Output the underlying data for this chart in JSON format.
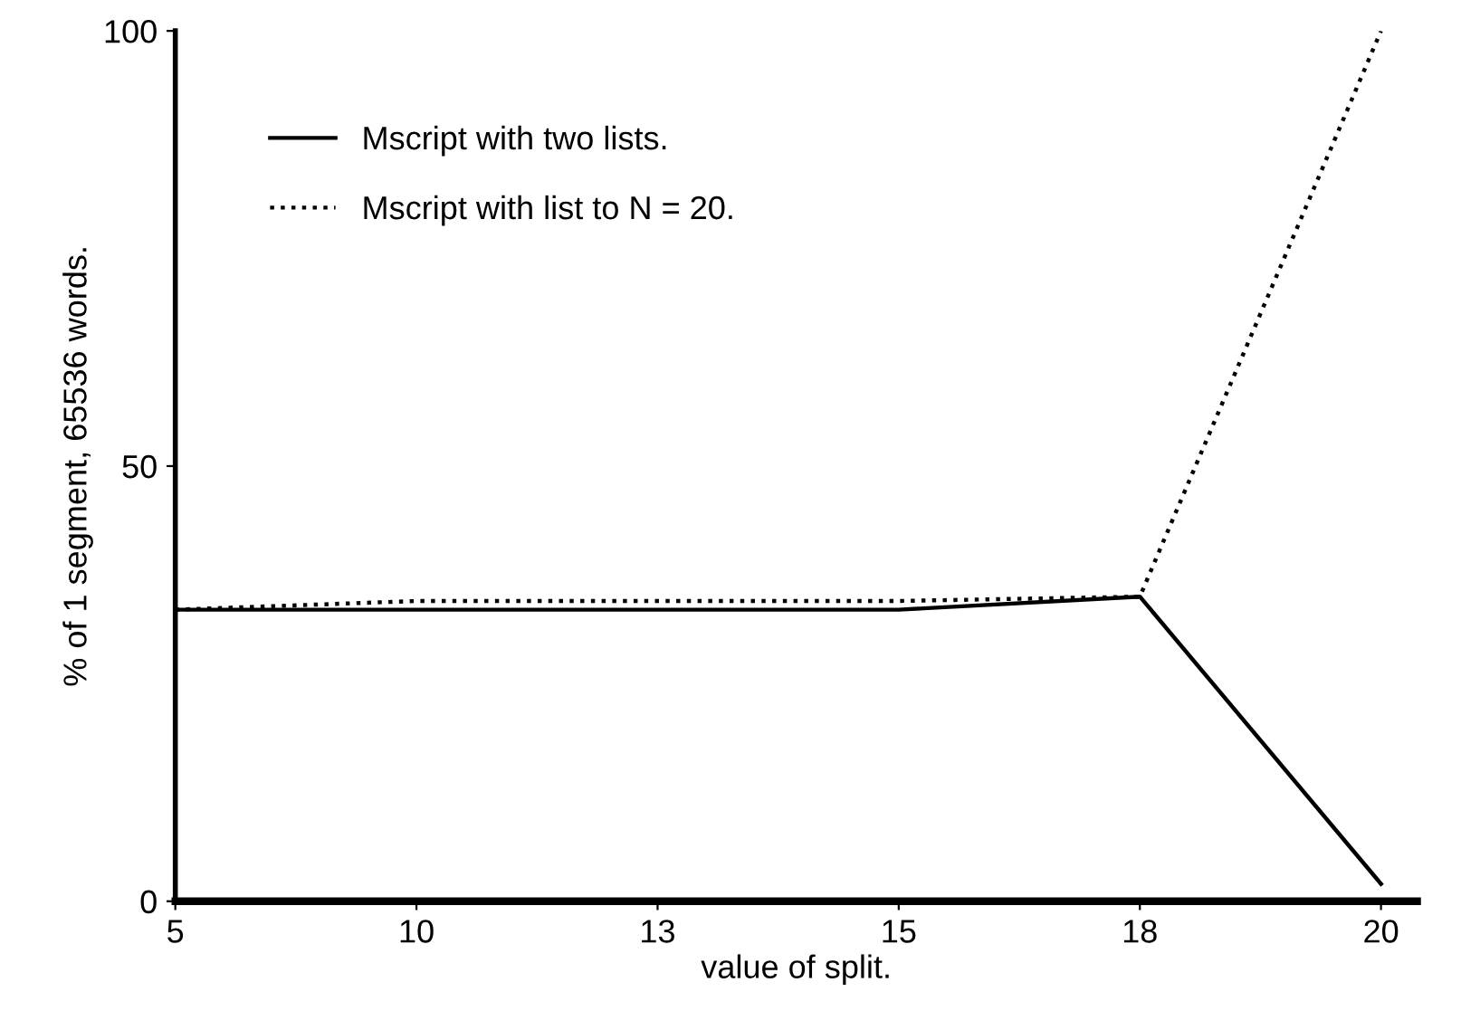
{
  "chart_data": {
    "type": "line",
    "xlabel": "value of split.",
    "ylabel": "% of 1 segment, 65536 words.",
    "categories": [
      "5",
      "10",
      "13",
      "15",
      "18",
      "20"
    ],
    "series": [
      {
        "name": "Mscript with two lists.",
        "color": "#000000",
        "line_style": "solid",
        "values": [
          33.5,
          33.5,
          33.5,
          33.5,
          35,
          2
        ]
      },
      {
        "name": "Mscript with list to N = 20.",
        "color": "#000000",
        "line_style": "dotted",
        "values": [
          33.5,
          34.5,
          34.5,
          34.5,
          35,
          100
        ]
      }
    ],
    "ylim": [
      0,
      100
    ],
    "yticks": [
      0,
      50,
      100
    ],
    "grid": false,
    "legend": "top left",
    "marker": "none"
  }
}
